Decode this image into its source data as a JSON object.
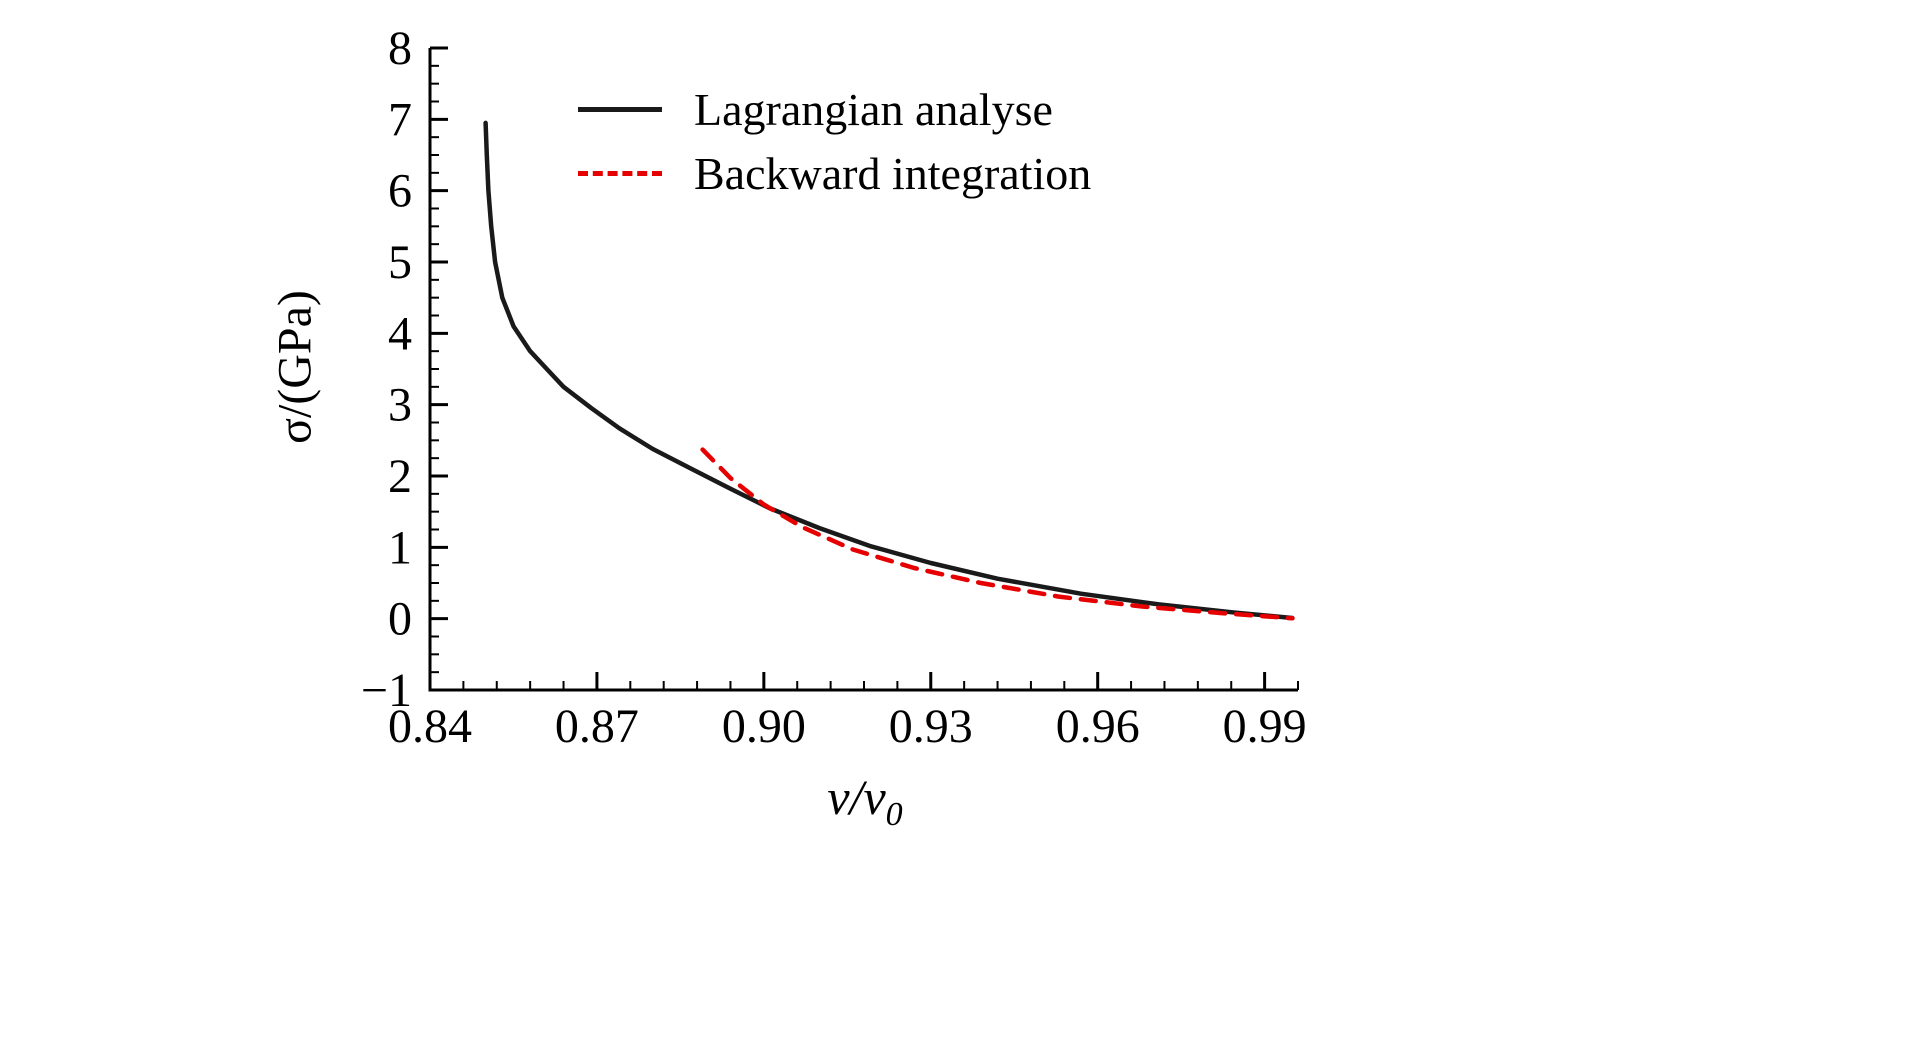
{
  "figure": {
    "background": "#ffffff",
    "ylabel": "σ/(GPa)",
    "xlabel_main": "v/v",
    "xlabel_sub": "0",
    "axis_color": "#000000",
    "legend": [
      {
        "label": "Lagrangian analyse",
        "color": "#1a1a1a",
        "style": "solid"
      },
      {
        "label": "Backward integration",
        "color": "#e60000",
        "style": "dashed"
      }
    ]
  },
  "chart_data": {
    "type": "line",
    "title": "",
    "xlabel": "v/v0",
    "ylabel": "σ/(GPa)",
    "xlim": [
      0.84,
      0.996
    ],
    "ylim": [
      -1,
      8
    ],
    "grid": false,
    "legend_position": "top-left-inside",
    "x_major_ticks": [
      0.84,
      0.87,
      0.9,
      0.93,
      0.96,
      0.99
    ],
    "x_tick_labels": [
      "0.84",
      "0.87",
      "0.90",
      "0.93",
      "0.96",
      "0.99"
    ],
    "x_minor_step": 0.006,
    "y_major_ticks": [
      -1,
      0,
      1,
      2,
      3,
      4,
      5,
      6,
      7,
      8
    ],
    "y_tick_labels": [
      "−1",
      "0",
      "1",
      "2",
      "3",
      "4",
      "5",
      "6",
      "7",
      "8"
    ],
    "y_minor_step": 0.25,
    "series": [
      {
        "name": "Lagrangian analyse",
        "color": "#1a1a1a",
        "style": "solid",
        "width": 4.5,
        "x": [
          0.85,
          0.8502,
          0.8505,
          0.851,
          0.8517,
          0.853,
          0.855,
          0.858,
          0.861,
          0.864,
          0.869,
          0.874,
          0.88,
          0.887,
          0.894,
          0.901,
          0.91,
          0.919,
          0.93,
          0.942,
          0.957,
          0.971,
          0.984,
          0.995
        ],
        "y": [
          6.95,
          6.5,
          6.0,
          5.5,
          5.0,
          4.5,
          4.1,
          3.75,
          3.5,
          3.25,
          2.95,
          2.67,
          2.38,
          2.1,
          1.82,
          1.55,
          1.27,
          1.02,
          0.78,
          0.56,
          0.35,
          0.2,
          0.09,
          0.01
        ]
      },
      {
        "name": "Backward integration",
        "color": "#e60000",
        "style": "dashed",
        "width": 4.5,
        "x": [
          0.889,
          0.894,
          0.9,
          0.907,
          0.916,
          0.927,
          0.939,
          0.953,
          0.968,
          0.982,
          0.995
        ],
        "y": [
          2.37,
          1.97,
          1.6,
          1.28,
          0.97,
          0.71,
          0.5,
          0.31,
          0.17,
          0.08,
          0.005
        ]
      }
    ]
  }
}
